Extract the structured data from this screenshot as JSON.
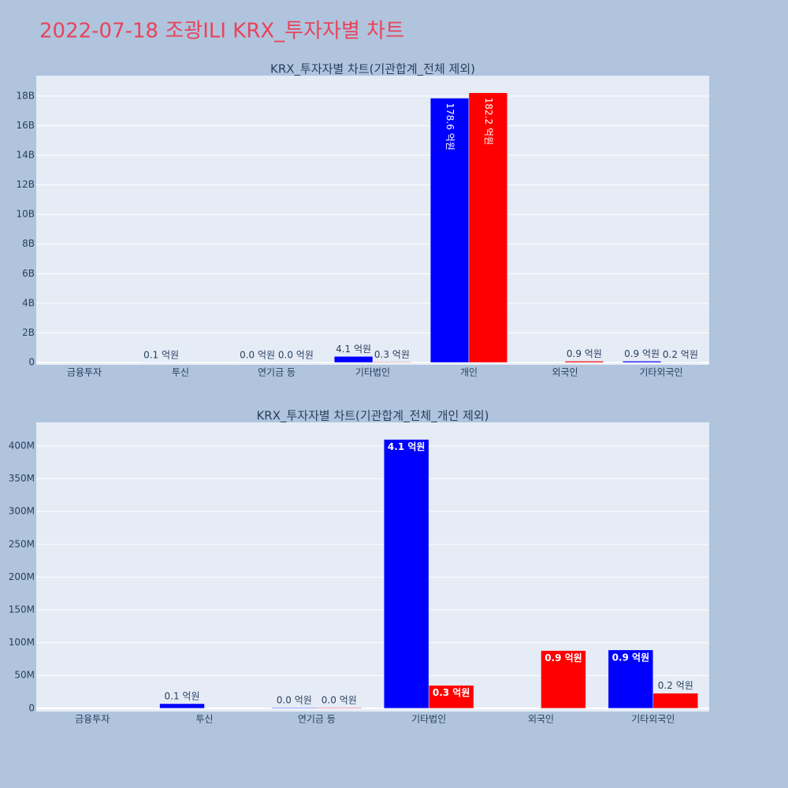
{
  "title": "2022-07-18 조광ILI KRX_투자자별 차트",
  "chart_data": [
    {
      "type": "bar",
      "title": "KRX_투자자별 차트(기관합계_전체 제외)",
      "categories": [
        "금융투자",
        "투신",
        "연기금 등",
        "기타법인",
        "개인",
        "외국인",
        "기타외국인"
      ],
      "series": [
        {
          "color": "#0000ff",
          "values": [
            null,
            7000000,
            1000000,
            410000000,
            17860000000,
            null,
            89000000
          ],
          "value_labels": [
            null,
            "0.1 억원",
            "0.0 억원",
            "4.1 억원",
            "178.6 억원",
            null,
            "0.9 억원"
          ]
        },
        {
          "color": "#ff0000",
          "values": [
            null,
            null,
            1000000,
            35000000,
            18220000000,
            88000000,
            23000000
          ],
          "value_labels": [
            null,
            null,
            "0.0 억원",
            "0.3 억원",
            "182.2 억원",
            "0.9 억원",
            "0.2 억원"
          ]
        }
      ],
      "ylim": [
        -160000000,
        19380000000
      ],
      "yticks": [
        0,
        {
          "value": 2000000000,
          "label": "2B"
        },
        {
          "value": 4000000000,
          "label": "4B"
        },
        {
          "value": 6000000000,
          "label": "6B"
        },
        {
          "value": 8000000000,
          "label": "8B"
        },
        {
          "value": 10000000000,
          "label": "10B"
        },
        {
          "value": 12000000000,
          "label": "12B"
        },
        {
          "value": 14000000000,
          "label": "14B"
        },
        {
          "value": 16000000000,
          "label": "16B"
        },
        {
          "value": 18000000000,
          "label": "18B"
        }
      ],
      "grid": true
    },
    {
      "type": "bar",
      "title": "KRX_투자자별 차트(기관합계_전체_개인 제외)",
      "categories": [
        "금융투자",
        "투신",
        "연기금 등",
        "기타법인",
        "외국인",
        "기타외국인"
      ],
      "series": [
        {
          "color": "#0000ff",
          "values": [
            null,
            7000000,
            1000000,
            410000000,
            null,
            89000000
          ],
          "value_labels": [
            null,
            "0.1 억원",
            "0.0 억원",
            "4.1 억원",
            null,
            "0.9 억원"
          ]
        },
        {
          "color": "#ff0000",
          "values": [
            null,
            null,
            1000000,
            35000000,
            88000000,
            23000000
          ],
          "value_labels": [
            null,
            null,
            "0.0 억원",
            "0.3 억원",
            "0.9 억원",
            "0.2 억원"
          ]
        }
      ],
      "ylim": [
        -5000000,
        436000000
      ],
      "yticks": [
        0,
        {
          "value": 50000000,
          "label": "50M"
        },
        {
          "value": 100000000,
          "label": "100M"
        },
        {
          "value": 150000000,
          "label": "150M"
        },
        {
          "value": 200000000,
          "label": "200M"
        },
        {
          "value": 250000000,
          "label": "250M"
        },
        {
          "value": 300000000,
          "label": "300M"
        },
        {
          "value": 350000000,
          "label": "350M"
        },
        {
          "value": 400000000,
          "label": "400M"
        }
      ],
      "grid": true
    }
  ]
}
